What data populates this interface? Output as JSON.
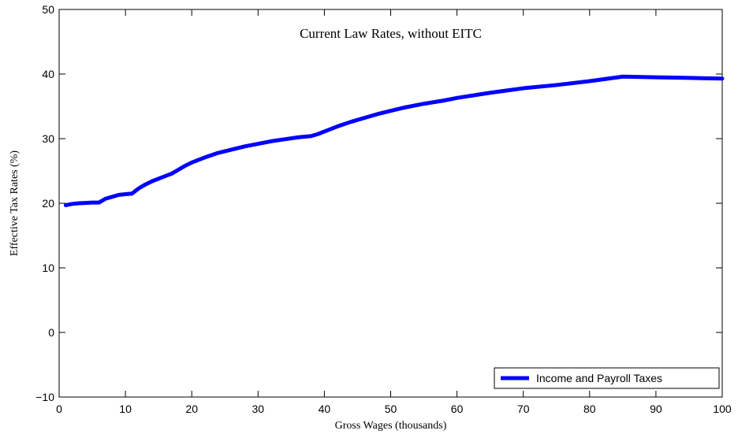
{
  "chart_data": {
    "type": "line",
    "title": "Current Law Rates, without EITC",
    "xlabel": "Gross Wages (thousands)",
    "ylabel": "Effective Tax Rates (%)",
    "xlim": [
      0,
      100
    ],
    "ylim": [
      -10,
      50
    ],
    "xticks": [
      0,
      10,
      20,
      30,
      40,
      50,
      60,
      70,
      80,
      90,
      100
    ],
    "yticks": [
      -10,
      0,
      10,
      20,
      30,
      40,
      50
    ],
    "grid": false,
    "legend_position": "bottom-right",
    "series": [
      {
        "name": "Income and Payroll Taxes",
        "color": "#0000ff",
        "x": [
          1,
          2,
          3,
          4,
          5,
          6,
          7,
          8,
          9,
          10,
          11,
          12,
          13,
          14,
          15,
          16,
          17,
          18,
          19,
          20,
          22,
          24,
          26,
          28,
          30,
          32,
          34,
          36,
          38,
          39,
          40,
          42,
          44,
          46,
          48,
          50,
          52,
          55,
          58,
          60,
          65,
          70,
          75,
          80,
          85,
          90,
          95,
          100
        ],
        "y": [
          19.7,
          19.9,
          20.0,
          20.05,
          20.1,
          20.1,
          20.7,
          21.0,
          21.3,
          21.4,
          21.5,
          22.3,
          22.9,
          23.4,
          23.8,
          24.2,
          24.6,
          25.2,
          25.8,
          26.3,
          27.1,
          27.8,
          28.3,
          28.8,
          29.2,
          29.6,
          29.9,
          30.2,
          30.4,
          30.7,
          31.1,
          31.9,
          32.6,
          33.2,
          33.8,
          34.3,
          34.8,
          35.4,
          35.9,
          36.3,
          37.1,
          37.8,
          38.3,
          38.9,
          39.6,
          39.5,
          39.4,
          39.3
        ]
      }
    ]
  }
}
